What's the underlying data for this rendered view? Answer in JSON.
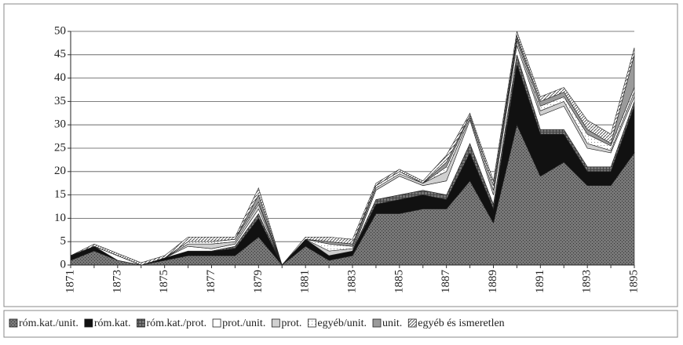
{
  "chart_data": {
    "type": "stacked_area",
    "categories": [
      "1871",
      null,
      "1873",
      null,
      "1875",
      null,
      "1877",
      null,
      "1879",
      null,
      "1881",
      null,
      "1883",
      null,
      "1885",
      null,
      "1887",
      null,
      "1889",
      null,
      "1891",
      null,
      "1893",
      null,
      "1895"
    ],
    "ylim": [
      0,
      50
    ],
    "yticks": [
      0,
      5,
      10,
      15,
      20,
      25,
      30,
      35,
      40,
      45,
      50
    ],
    "grid": true,
    "legend": "bottom",
    "series": [
      {
        "name": "róm.kat./unit.",
        "color": "#333333",
        "pattern": "dots",
        "values": [
          1,
          3,
          1,
          0,
          1,
          2,
          2,
          2,
          6,
          0,
          4,
          1,
          2,
          11,
          11,
          12,
          12,
          18,
          9,
          30,
          19,
          22,
          17,
          17,
          24
        ]
      },
      {
        "name": "róm.kat.",
        "color": "#111111",
        "pattern": "solid",
        "values": [
          1,
          1,
          0,
          0,
          0.5,
          1,
          1,
          1.5,
          4,
          0,
          1.5,
          1,
          1,
          2,
          3,
          3,
          2,
          6,
          3,
          13,
          9,
          6,
          3,
          3,
          10
        ]
      },
      {
        "name": "róm.kat./prot.",
        "color": "#444444",
        "pattern": "grid",
        "values": [
          0,
          0,
          0,
          0,
          0,
          0,
          0,
          0.5,
          1,
          0,
          0,
          0,
          0,
          1,
          1,
          1,
          1,
          2,
          1,
          2,
          1,
          1,
          1,
          1,
          1
        ]
      },
      {
        "name": "prot./unit.",
        "color": "#ffffff",
        "pattern": "solid",
        "values": [
          0,
          0,
          1,
          0,
          0,
          1,
          0.5,
          0.5,
          1,
          0,
          0,
          0,
          0,
          2,
          4,
          1,
          3,
          5,
          2,
          2,
          3,
          5,
          4,
          3,
          1
        ]
      },
      {
        "name": "prot.",
        "color": "#d0d0d0",
        "pattern": "solid",
        "values": [
          0,
          0,
          0,
          0,
          0,
          0.5,
          1,
          0.5,
          1,
          0,
          0,
          1,
          0.5,
          0.5,
          0.5,
          0.5,
          2,
          0.5,
          1,
          1,
          1,
          1,
          1,
          0.5,
          1
        ]
      },
      {
        "name": "egyéb/unit.",
        "color": "#888888",
        "pattern": "sparse",
        "values": [
          0,
          0,
          0,
          0,
          0,
          0.5,
          0.5,
          0.5,
          0.5,
          0,
          0,
          1.5,
          0.5,
          0.5,
          0.5,
          0,
          1,
          0.5,
          1,
          0.5,
          1,
          1,
          2,
          1,
          1
        ]
      },
      {
        "name": "unit.",
        "color": "#9a9a9a",
        "pattern": "solid",
        "values": [
          0,
          0,
          0,
          0,
          0,
          0,
          0,
          0,
          1.5,
          0,
          0,
          0.5,
          0.5,
          0,
          0,
          0,
          1,
          0,
          0,
          0.5,
          1,
          1,
          1,
          0.5,
          7
        ]
      },
      {
        "name": "egyéb és ismeretlen",
        "color": "#555555",
        "pattern": "hatch",
        "values": [
          0,
          0.5,
          0.5,
          0.5,
          0.5,
          1,
          1,
          0.5,
          1.5,
          0,
          0.5,
          1,
          1,
          0.5,
          0.5,
          0.5,
          1.5,
          0.5,
          1,
          1,
          1,
          1,
          2,
          2,
          1.5
        ]
      }
    ]
  }
}
